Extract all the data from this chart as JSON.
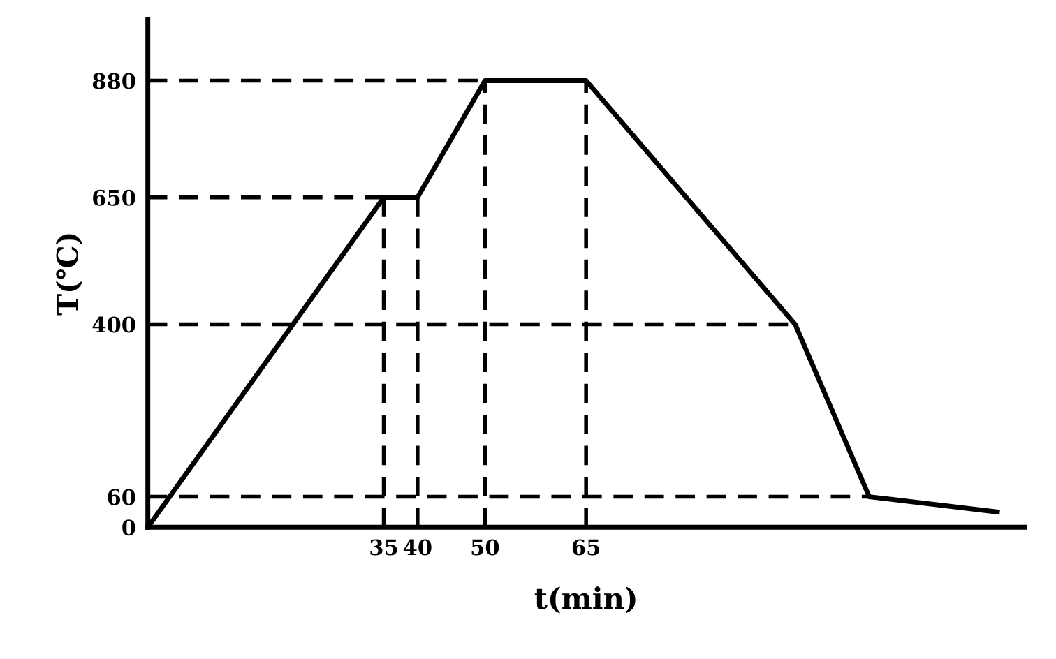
{
  "chart_data": {
    "type": "line",
    "xlabel": "t(min)",
    "ylabel": "T(℃)",
    "x": [
      0,
      35,
      40,
      50,
      65,
      96,
      107,
      126
    ],
    "series": [
      {
        "color": "#000000",
        "values": [
          0,
          650,
          650,
          880,
          880,
          400,
          60,
          30
        ]
      }
    ],
    "xlim": [
      0,
      130
    ],
    "ylim": [
      0,
      1000
    ],
    "xticks": [
      35,
      40,
      50,
      65
    ],
    "yticks": [
      0,
      60,
      400,
      650,
      880
    ],
    "ref_lines": [
      {
        "axis": "y",
        "value": 60,
        "color": "#000000",
        "line_style": "dashed"
      },
      {
        "axis": "y",
        "value": 400,
        "color": "#000000",
        "line_style": "dashed"
      },
      {
        "axis": "y",
        "value": 650,
        "color": "#000000",
        "line_style": "dashed"
      },
      {
        "axis": "y",
        "value": 880,
        "color": "#000000",
        "line_style": "dashed"
      },
      {
        "axis": "x",
        "value": 35,
        "color": "#000000",
        "line_style": "dashed"
      },
      {
        "axis": "x",
        "value": 40,
        "color": "#000000",
        "line_style": "dashed"
      },
      {
        "axis": "x",
        "value": 50,
        "color": "#000000",
        "line_style": "dashed"
      },
      {
        "axis": "x",
        "value": 65,
        "color": "#000000",
        "line_style": "dashed"
      }
    ],
    "grid": false,
    "marker": "none",
    "line_style": "solid"
  }
}
